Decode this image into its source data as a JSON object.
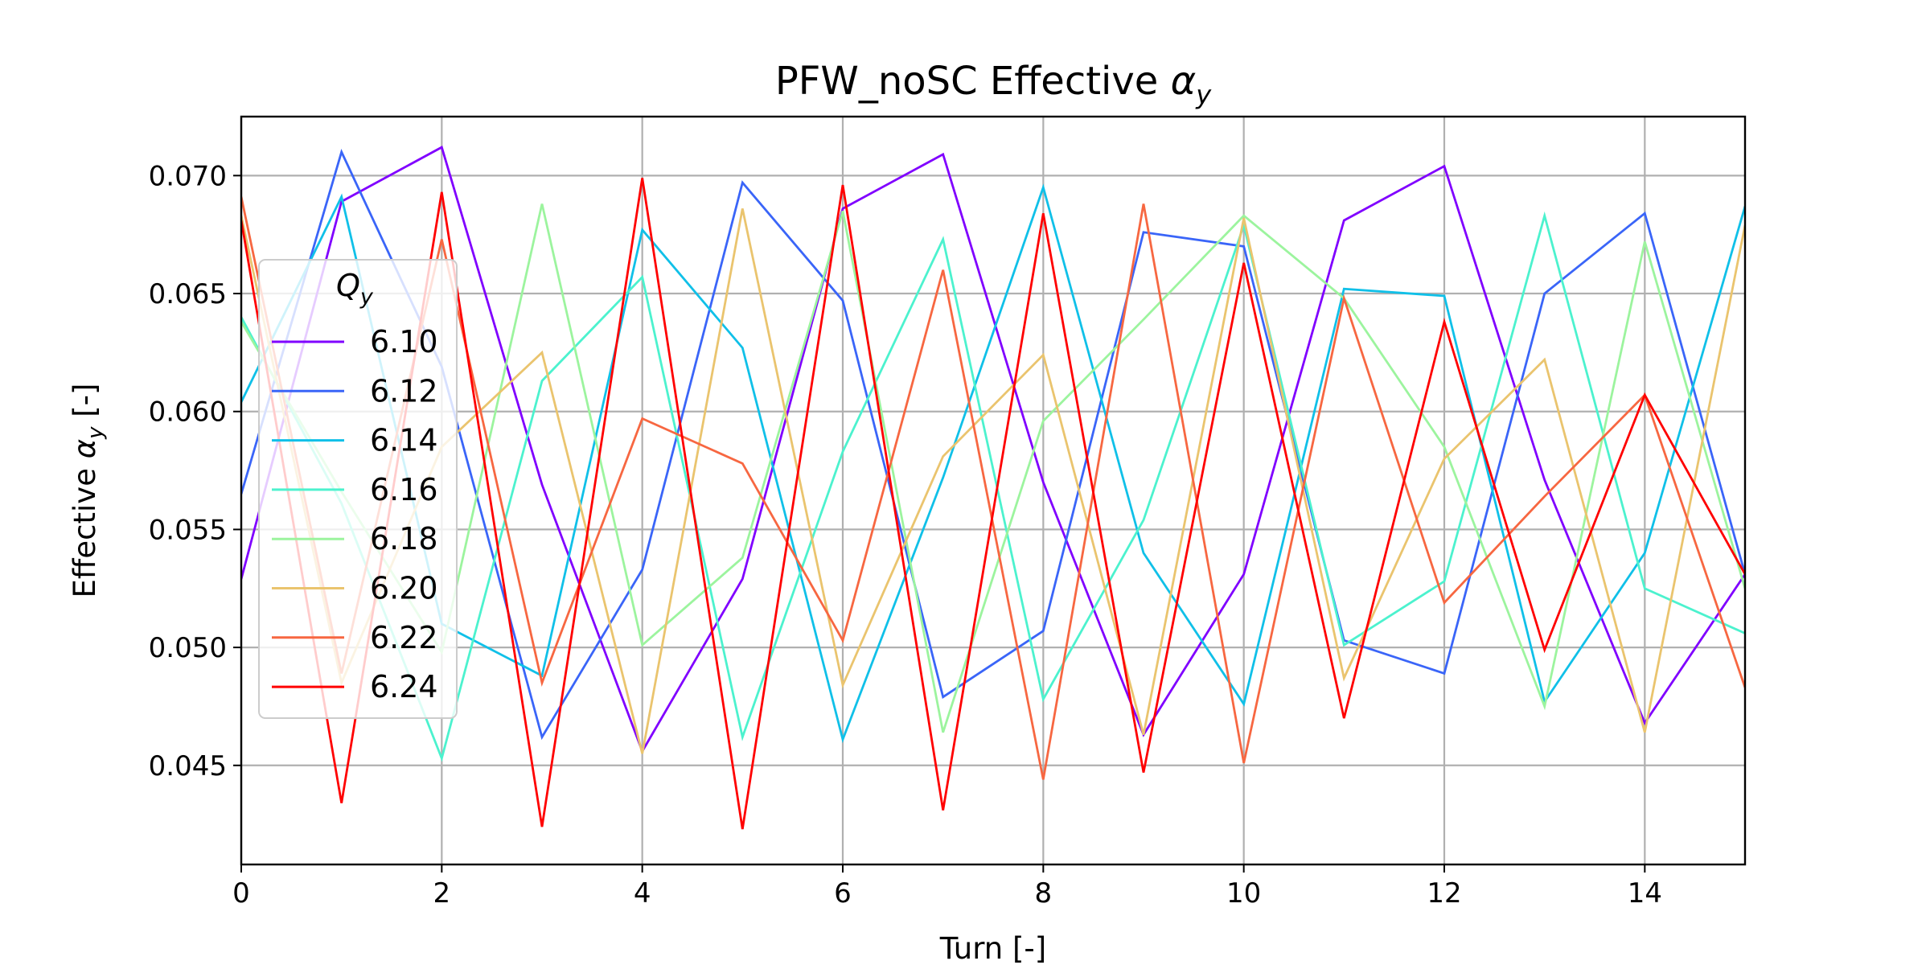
{
  "chart_data": {
    "type": "line",
    "title": "PFW_noSC Effective αy",
    "title_prefix": "PFW_noSC Effective ",
    "title_symbol": "α",
    "title_subscript": "y",
    "xlabel": "Turn [-]",
    "ylabel_prefix": "Effective ",
    "ylabel_symbol": "α",
    "ylabel_subscript": "y",
    "ylabel_suffix": " [-]",
    "xlim": [
      0,
      15
    ],
    "ylim": [
      0.0408,
      0.0725
    ],
    "x_ticks": [
      0,
      2,
      4,
      6,
      8,
      10,
      12,
      14
    ],
    "y_ticks": [
      0.045,
      0.05,
      0.055,
      0.06,
      0.065,
      0.07
    ],
    "y_tick_labels": [
      "0.045",
      "0.050",
      "0.055",
      "0.060",
      "0.065",
      "0.070"
    ],
    "grid": true,
    "legend_title": "Q",
    "legend_title_subscript": "y",
    "legend_placement": "center-left",
    "x": [
      0,
      1,
      2,
      3,
      4,
      5,
      6,
      7,
      8,
      9,
      10,
      11,
      12,
      13,
      14,
      15
    ],
    "series": [
      {
        "name": "6.10",
        "color": "#8000ff",
        "values": [
          0.0529,
          0.0689,
          0.0712,
          0.0569,
          0.0456,
          0.0529,
          0.0686,
          0.0709,
          0.057,
          0.0463,
          0.0531,
          0.0681,
          0.0704,
          0.0571,
          0.0468,
          0.0531
        ]
      },
      {
        "name": "6.12",
        "color": "#3a65f8",
        "values": [
          0.0565,
          0.071,
          0.0619,
          0.0462,
          0.0533,
          0.0697,
          0.0647,
          0.0479,
          0.0507,
          0.0676,
          0.067,
          0.0503,
          0.0489,
          0.065,
          0.0684,
          0.0531
        ]
      },
      {
        "name": "6.14",
        "color": "#10c0e8",
        "values": [
          0.0604,
          0.0691,
          0.051,
          0.0488,
          0.0677,
          0.0627,
          0.0461,
          0.0572,
          0.0695,
          0.054,
          0.0476,
          0.0652,
          0.0649,
          0.0477,
          0.054,
          0.0687
        ]
      },
      {
        "name": "6.16",
        "color": "#4cf2ce",
        "values": [
          0.064,
          0.0561,
          0.0453,
          0.0613,
          0.0657,
          0.0462,
          0.0583,
          0.0673,
          0.0478,
          0.0554,
          0.0679,
          0.0501,
          0.0528,
          0.0683,
          0.0525,
          0.0506
        ]
      },
      {
        "name": "6.18",
        "color": "#9cf49e",
        "values": [
          0.0638,
          0.0566,
          0.0498,
          0.0688,
          0.0501,
          0.0538,
          0.0685,
          0.0464,
          0.0596,
          0.0639,
          0.0683,
          0.0648,
          0.0585,
          0.0475,
          0.0672,
          0.0525
        ]
      },
      {
        "name": "6.20",
        "color": "#eac46e",
        "values": [
          0.0683,
          0.0485,
          0.0585,
          0.0625,
          0.0455,
          0.0686,
          0.0484,
          0.0581,
          0.0624,
          0.0463,
          0.0682,
          0.0487,
          0.058,
          0.0622,
          0.0464,
          0.0679
        ]
      },
      {
        "name": "6.22",
        "color": "#f76741",
        "values": [
          0.0691,
          0.0489,
          0.0673,
          0.0485,
          0.0597,
          0.0578,
          0.0503,
          0.066,
          0.0444,
          0.0688,
          0.0451,
          0.0648,
          0.0519,
          0.0564,
          0.0607,
          0.0483
        ]
      },
      {
        "name": "6.24",
        "color": "#ff0000",
        "values": [
          0.0681,
          0.0434,
          0.0693,
          0.0424,
          0.0699,
          0.0423,
          0.0696,
          0.0431,
          0.0684,
          0.0447,
          0.0663,
          0.047,
          0.0638,
          0.0499,
          0.0607,
          0.0531
        ]
      }
    ]
  }
}
